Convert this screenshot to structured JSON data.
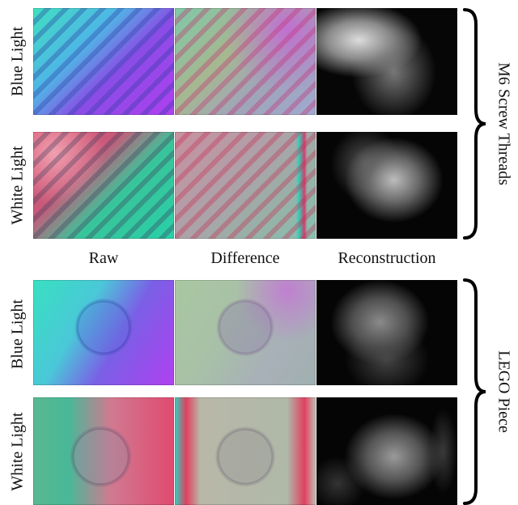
{
  "column_labels": [
    "Raw",
    "Difference",
    "Reconstruction"
  ],
  "groups": [
    {
      "name": "M6 Screw Threads",
      "rows": [
        "Blue Light",
        "White Light"
      ]
    },
    {
      "name": "LEGO Piece",
      "rows": [
        "Blue Light",
        "White Light"
      ]
    }
  ]
}
